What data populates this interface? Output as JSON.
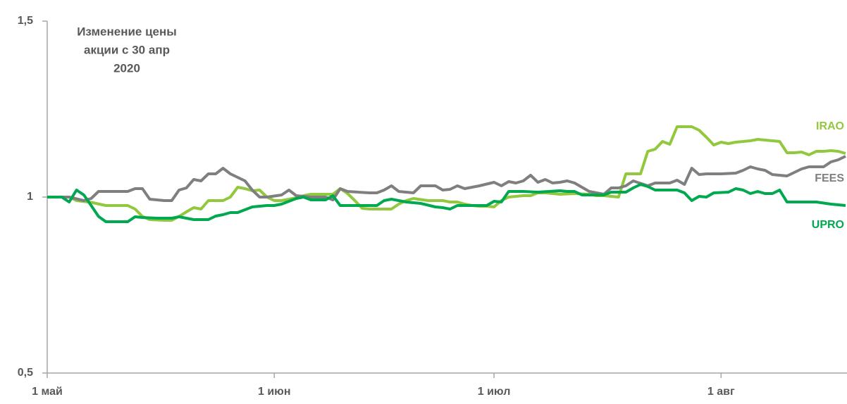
{
  "chart_data": {
    "type": "line",
    "title": [
      "Изменение цены",
      "акции с 30 апр",
      "2020"
    ],
    "xlim": [
      0,
      109
    ],
    "xticks": [
      {
        "value": 0,
        "label": "1 май"
      },
      {
        "value": 31,
        "label": "1 июн"
      },
      {
        "value": 61,
        "label": "1 июл"
      },
      {
        "value": 92,
        "label": "1 авг"
      }
    ],
    "ylim": [
      0.5,
      1.5
    ],
    "yticks": [
      {
        "value": 0.5,
        "label": "0,5"
      },
      1,
      {
        "value": 1.5,
        "label": "1,5"
      }
    ],
    "grid": false,
    "series": [
      {
        "name": "IRAO",
        "color": "#92c83e",
        "x": [
          0,
          3,
          4,
          6,
          8,
          10,
          11,
          12,
          13,
          14,
          16,
          17,
          18,
          19,
          20,
          21,
          22,
          24,
          25,
          26,
          27,
          28,
          29,
          30,
          31,
          32,
          33,
          34,
          35,
          36,
          38,
          39,
          40,
          41,
          42,
          43,
          44,
          46,
          47,
          48,
          49,
          50,
          52,
          54,
          55,
          56,
          57,
          58,
          59,
          60,
          61,
          62,
          63,
          65,
          66,
          67,
          68,
          70,
          72,
          74,
          75,
          76,
          77,
          78,
          79,
          81,
          82,
          83,
          84,
          85,
          86,
          87,
          88,
          89,
          90,
          91,
          92,
          93,
          94,
          95,
          96,
          97,
          98,
          99,
          100,
          101,
          102,
          103,
          104,
          105,
          106,
          107,
          108,
          109
        ],
        "values": [
          1.0,
          1.0,
          0.99,
          0.985,
          0.976,
          0.976,
          0.976,
          0.966,
          0.945,
          0.936,
          0.934,
          0.934,
          0.945,
          0.958,
          0.97,
          0.966,
          0.99,
          0.99,
          1.0,
          1.028,
          1.024,
          1.018,
          1.02,
          1.0,
          0.99,
          0.99,
          0.994,
          0.998,
          1.004,
          1.008,
          1.008,
          1.008,
          1.024,
          1.01,
          0.99,
          0.968,
          0.966,
          0.966,
          0.966,
          0.98,
          0.99,
          0.996,
          0.99,
          0.99,
          0.986,
          0.986,
          0.98,
          0.976,
          0.974,
          0.974,
          0.972,
          0.99,
          1.0,
          1.004,
          1.004,
          1.012,
          1.012,
          1.008,
          1.01,
          1.008,
          1.004,
          1.004,
          1.002,
          1.0,
          1.066,
          1.066,
          1.13,
          1.136,
          1.158,
          1.15,
          1.2,
          1.2,
          1.2,
          1.19,
          1.17,
          1.148,
          1.156,
          1.152,
          1.156,
          1.158,
          1.16,
          1.164,
          1.162,
          1.16,
          1.158,
          1.126,
          1.126,
          1.128,
          1.12,
          1.13,
          1.13,
          1.132,
          1.13,
          1.124
        ]
      },
      {
        "name": "FEES",
        "color": "#7f7f7f",
        "x": [
          0,
          3,
          5,
          6,
          7,
          11,
          12,
          13,
          14,
          16,
          17,
          18,
          19,
          20,
          21,
          22,
          23,
          24,
          25,
          27,
          28,
          29,
          30,
          32,
          33,
          34,
          36,
          38,
          39,
          40,
          41,
          44,
          45,
          46,
          47,
          48,
          50,
          51,
          53,
          54,
          55,
          56,
          57,
          59,
          61,
          62,
          63,
          64,
          65,
          66,
          67,
          68,
          69,
          70,
          71,
          72,
          73,
          74,
          75,
          76,
          77,
          78,
          79,
          80,
          82,
          83,
          85,
          86,
          87,
          88,
          89,
          90,
          92,
          94,
          95,
          96,
          97,
          98,
          99,
          100,
          101,
          102,
          103,
          104,
          106,
          107,
          108,
          109
        ],
        "values": [
          1.0,
          1.0,
          0.99,
          0.996,
          1.016,
          1.016,
          1.024,
          1.024,
          0.994,
          0.99,
          0.99,
          1.02,
          1.026,
          1.05,
          1.046,
          1.066,
          1.066,
          1.082,
          1.066,
          1.046,
          1.02,
          1.0,
          1.0,
          1.006,
          1.02,
          1.004,
          1.0,
          1.0,
          0.992,
          1.024,
          1.016,
          1.012,
          1.012,
          1.02,
          1.032,
          1.016,
          1.012,
          1.032,
          1.032,
          1.02,
          1.022,
          1.032,
          1.024,
          1.032,
          1.042,
          1.032,
          1.044,
          1.04,
          1.046,
          1.062,
          1.042,
          1.05,
          1.04,
          1.042,
          1.046,
          1.04,
          1.028,
          1.016,
          1.012,
          1.008,
          1.026,
          1.026,
          1.032,
          1.046,
          1.032,
          1.04,
          1.04,
          1.048,
          1.036,
          1.082,
          1.064,
          1.066,
          1.066,
          1.068,
          1.076,
          1.086,
          1.08,
          1.076,
          1.064,
          1.062,
          1.06,
          1.07,
          1.08,
          1.086,
          1.086,
          1.1,
          1.106,
          1.116
        ]
      },
      {
        "name": "UPRO",
        "color": "#00a84f",
        "x": [
          0,
          2,
          3,
          4,
          5,
          6,
          7,
          8,
          11,
          12,
          13,
          15,
          17,
          18,
          19,
          20,
          22,
          23,
          24,
          25,
          26,
          28,
          30,
          31,
          32,
          34,
          35,
          36,
          38,
          39,
          40,
          42,
          45,
          46,
          47,
          49,
          51,
          53,
          54,
          55,
          56,
          58,
          60,
          61,
          62,
          63,
          65,
          67,
          70,
          71,
          72,
          73,
          75,
          76,
          77,
          79,
          80,
          81,
          82,
          83,
          86,
          87,
          88,
          89,
          90,
          91,
          93,
          94,
          95,
          96,
          97,
          98,
          99,
          100,
          101,
          103,
          105,
          107,
          109
        ],
        "values": [
          1.0,
          1.0,
          0.986,
          1.02,
          1.006,
          0.976,
          0.945,
          0.93,
          0.93,
          0.944,
          0.942,
          0.94,
          0.94,
          0.944,
          0.94,
          0.936,
          0.936,
          0.946,
          0.95,
          0.956,
          0.956,
          0.972,
          0.976,
          0.976,
          0.98,
          0.996,
          1.0,
          0.992,
          0.992,
          1.004,
          0.976,
          0.976,
          0.976,
          0.99,
          0.994,
          0.986,
          0.982,
          0.972,
          0.97,
          0.966,
          0.976,
          0.976,
          0.976,
          0.988,
          0.986,
          1.016,
          1.016,
          1.014,
          1.018,
          1.016,
          1.016,
          1.006,
          1.006,
          1.006,
          1.014,
          1.014,
          1.026,
          1.036,
          1.03,
          1.02,
          1.02,
          1.012,
          0.99,
          1.002,
          1.0,
          1.012,
          1.014,
          1.024,
          1.02,
          1.01,
          1.016,
          1.01,
          1.01,
          1.02,
          0.986,
          0.986,
          0.986,
          0.98,
          0.976
        ]
      }
    ]
  }
}
